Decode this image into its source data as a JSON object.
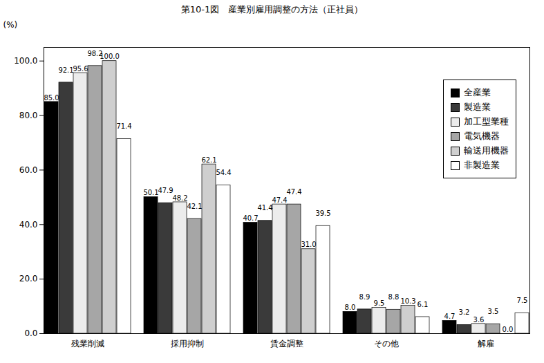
{
  "chart_data": {
    "type": "bar",
    "title": "第10-1図　産業別雇用調整の方法（正社員）",
    "y_label": "(%)",
    "categories": [
      "残業削減",
      "採用抑制",
      "賃金調整",
      "その他",
      "解雇"
    ],
    "series": [
      {
        "name": "全産業",
        "color": "#000000",
        "values": [
          85.0,
          50.1,
          40.7,
          8.0,
          4.7
        ],
        "value_labels": [
          "85.0",
          "50.1",
          "40.7",
          "8.0",
          "4.7"
        ]
      },
      {
        "name": "製造業",
        "color": "#3a3a3a",
        "values": [
          92.1,
          47.9,
          41.4,
          8.9,
          3.2
        ],
        "value_labels": [
          "92.1",
          "47.9",
          "41.4",
          "8.9",
          "3.2"
        ]
      },
      {
        "name": "加工型業種",
        "color": "#ececec",
        "values": [
          95.6,
          48.2,
          47.4,
          9.5,
          3.6
        ],
        "value_labels": [
          "95.6",
          "48.2",
          "47.4",
          "9.5",
          "3.6"
        ]
      },
      {
        "name": "電気機器",
        "color": "#a6a6a6",
        "values": [
          98.2,
          42.1,
          47.4,
          8.8,
          3.5
        ],
        "value_labels": [
          "98.2",
          "42.1",
          "47.4",
          "8.8",
          "3.5"
        ]
      },
      {
        "name": "輸送用機器",
        "color": "#cfcfcf",
        "values": [
          100.0,
          62.1,
          31.0,
          10.3,
          0.0
        ],
        "value_labels": [
          "100.0",
          "62.1",
          "31.0",
          "10.3",
          "0.0"
        ]
      },
      {
        "name": "非製造業",
        "color": "#ffffff",
        "values": [
          71.4,
          54.4,
          39.5,
          6.1,
          7.5
        ],
        "value_labels": [
          "71.4",
          "54.4",
          "39.5",
          "6.1",
          "7.5"
        ]
      }
    ],
    "ylim": [
      0,
      105
    ],
    "yticks": [
      {
        "value": 0,
        "label": "0.0"
      },
      {
        "value": 20,
        "label": "20.0"
      },
      {
        "value": 40,
        "label": "40.0"
      },
      {
        "value": 60,
        "label": "60.0"
      },
      {
        "value": 80,
        "label": "80.0"
      },
      {
        "value": 100,
        "label": "100.0"
      }
    ],
    "grid": false,
    "data_labels": true,
    "legend": "top-right"
  }
}
